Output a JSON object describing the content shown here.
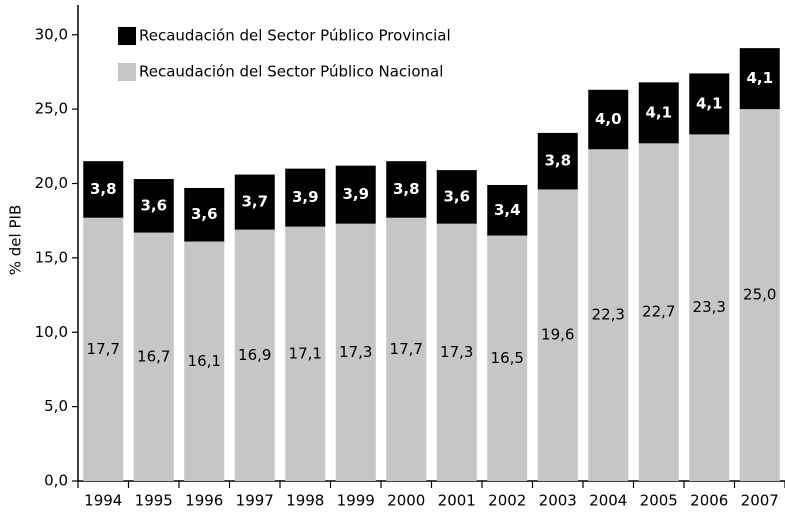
{
  "chart_data": {
    "type": "stacked_bar",
    "y_label": "% del PIB",
    "categories": [
      "1994",
      "1995",
      "1996",
      "1997",
      "1998",
      "1999",
      "2000",
      "2001",
      "2002",
      "2003",
      "2004",
      "2005",
      "2006",
      "2007"
    ],
    "series": [
      {
        "name": "Recaudación del Sector Público Nacional",
        "color": "#c6c6c6",
        "label_color": "#000000",
        "values": [
          17.7,
          16.7,
          16.1,
          16.9,
          17.1,
          17.3,
          17.7,
          17.3,
          16.5,
          19.6,
          22.3,
          22.7,
          23.3,
          25.0
        ],
        "value_labels": [
          "17,7",
          "16,7",
          "16,1",
          "16,9",
          "17,1",
          "17,3",
          "17,7",
          "17,3",
          "16,5",
          "19,6",
          "22,3",
          "22,7",
          "23,3",
          "25,0"
        ]
      },
      {
        "name": "Recaudación del Sector Público Provincial",
        "color": "#000000",
        "label_color": "#ffffff",
        "values": [
          3.8,
          3.6,
          3.6,
          3.7,
          3.9,
          3.9,
          3.8,
          3.6,
          3.4,
          3.8,
          4.0,
          4.1,
          4.1,
          4.1
        ],
        "value_labels": [
          "3,8",
          "3,6",
          "3,6",
          "3,7",
          "3,9",
          "3,9",
          "3,8",
          "3,6",
          "3,4",
          "3,8",
          "4,0",
          "4,1",
          "4,1",
          "4,1"
        ]
      }
    ],
    "ylim": [
      0,
      32
    ],
    "yticks": [
      {
        "value": 0,
        "label": "0,0"
      },
      {
        "value": 5,
        "label": "5,0"
      },
      {
        "value": 10,
        "label": "10,0"
      },
      {
        "value": 15,
        "label": "15,0"
      },
      {
        "value": 20,
        "label": "20,0"
      },
      {
        "value": 25,
        "label": "25,0"
      },
      {
        "value": 30,
        "label": "30,0"
      }
    ],
    "grid": false,
    "legend": "top-left"
  }
}
